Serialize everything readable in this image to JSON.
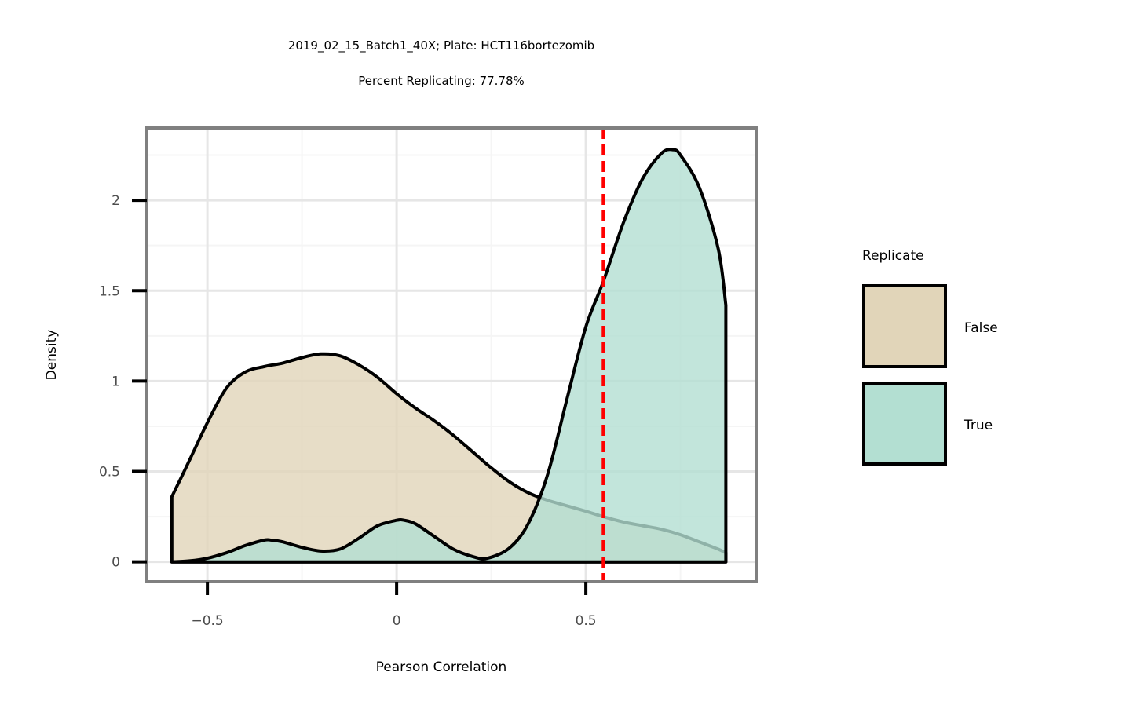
{
  "chart_data": {
    "type": "area",
    "title_lines": [
      "2019_02_15_Batch1_40X; Plate: HCT116bortezomib",
      "Percent Replicating: 77.78%"
    ],
    "xlabel": "Pearson Correlation",
    "ylabel": "Density",
    "xlim": [
      -0.66,
      0.95
    ],
    "ylim": [
      -0.11,
      2.4
    ],
    "x_ticks": [
      -0.5,
      0,
      0.5
    ],
    "x_tick_labels": [
      "−0.5",
      "0",
      "0.5"
    ],
    "y_ticks": [
      0,
      0.5,
      1,
      1.5,
      2
    ],
    "y_tick_labels": [
      "0",
      "0.5",
      "1",
      "1.5",
      "2"
    ],
    "grid": true,
    "threshold_line": {
      "x": 0.546,
      "color": "#ff0000",
      "style": "dashed"
    },
    "legend": {
      "title": "Replicate",
      "placement": "right"
    },
    "series": [
      {
        "name": "False",
        "fill": "#e1d5b9",
        "x": [
          -0.594,
          -0.55,
          -0.5,
          -0.45,
          -0.4,
          -0.35,
          -0.3,
          -0.25,
          -0.2,
          -0.15,
          -0.1,
          -0.05,
          0.0,
          0.05,
          0.1,
          0.15,
          0.2,
          0.25,
          0.3,
          0.35,
          0.4,
          0.45,
          0.5,
          0.546,
          0.6,
          0.65,
          0.7,
          0.75,
          0.8,
          0.85,
          0.87
        ],
        "y": [
          0.36,
          0.55,
          0.77,
          0.96,
          1.05,
          1.08,
          1.1,
          1.13,
          1.15,
          1.14,
          1.09,
          1.02,
          0.93,
          0.85,
          0.78,
          0.7,
          0.61,
          0.52,
          0.44,
          0.38,
          0.34,
          0.31,
          0.28,
          0.25,
          0.22,
          0.2,
          0.18,
          0.15,
          0.11,
          0.07,
          0.05
        ]
      },
      {
        "name": "True",
        "fill": "#b3dfd2",
        "x": [
          -0.594,
          -0.55,
          -0.5,
          -0.45,
          -0.4,
          -0.35,
          -0.33,
          -0.3,
          -0.25,
          -0.2,
          -0.15,
          -0.1,
          -0.05,
          0.0,
          0.02,
          0.05,
          0.1,
          0.15,
          0.2,
          0.24,
          0.3,
          0.35,
          0.4,
          0.45,
          0.5,
          0.546,
          0.6,
          0.65,
          0.7,
          0.73,
          0.75,
          0.8,
          0.85,
          0.87
        ],
        "y": [
          0.0,
          0.005,
          0.02,
          0.05,
          0.09,
          0.12,
          0.12,
          0.11,
          0.08,
          0.06,
          0.07,
          0.13,
          0.2,
          0.23,
          0.23,
          0.21,
          0.14,
          0.07,
          0.03,
          0.02,
          0.08,
          0.22,
          0.49,
          0.9,
          1.3,
          1.55,
          1.88,
          2.12,
          2.26,
          2.28,
          2.25,
          2.07,
          1.73,
          1.42
        ]
      }
    ]
  }
}
